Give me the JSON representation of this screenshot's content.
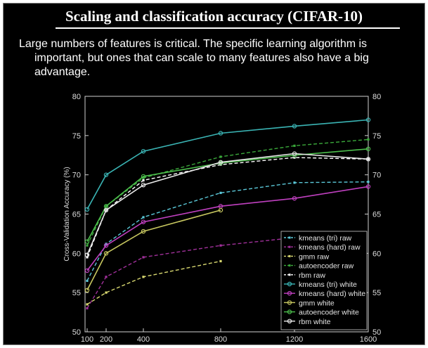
{
  "slide": {
    "title": "Scaling and classification accuracy (CIFAR-10)",
    "body_line1": "Large numbers of features is critical. The specific learning algorithm is",
    "body_line2": "important, but ones that can scale to many features also have a big",
    "body_line3": "advantage."
  },
  "chart_data": {
    "type": "line",
    "ylabel": "Cross-Validation Accuracy (%)",
    "xlabel": "",
    "x": [
      100,
      200,
      400,
      800,
      1200,
      1600
    ],
    "xticks": [
      "100",
      "200",
      "400",
      "800",
      "1200",
      "1600"
    ],
    "yticks": [
      "50",
      "55",
      "60",
      "65",
      "70",
      "75",
      "80"
    ],
    "ylim": [
      50,
      80
    ],
    "legend_position": "bottom-right",
    "series": [
      {
        "name": "kmeans (tri) raw",
        "color": "#5bc8d8",
        "dash": true,
        "marker": "square",
        "x": [
          100,
          200,
          400,
          800,
          1200,
          1600
        ],
        "values": [
          56.5,
          61.2,
          64.6,
          67.7,
          69.0,
          69.1
        ]
      },
      {
        "name": "kmeans (hard) raw",
        "color": "#a0309a",
        "dash": true,
        "marker": "square",
        "x": [
          100,
          200,
          400,
          800,
          1200
        ],
        "values": [
          53.0,
          57.0,
          59.5,
          61.0,
          62.0
        ]
      },
      {
        "name": "gmm raw",
        "color": "#d8d870",
        "dash": true,
        "marker": "square",
        "x": [
          100,
          200,
          400,
          800
        ],
        "values": [
          53.5,
          55.0,
          57.0,
          59.0
        ]
      },
      {
        "name": "autoencoder raw",
        "color": "#3aa83a",
        "dash": true,
        "marker": "square",
        "x": [
          100,
          200,
          400,
          800,
          1200,
          1600
        ],
        "values": [
          61.0,
          66.0,
          69.6,
          72.3,
          73.7,
          74.5
        ]
      },
      {
        "name": "rbm raw",
        "color": "#ffffff",
        "dash": true,
        "marker": "square",
        "x": [
          100,
          200,
          400,
          800,
          1200,
          1600
        ],
        "values": [
          59.5,
          65.5,
          69.3,
          71.3,
          72.2,
          72.0
        ]
      },
      {
        "name": "kmeans (tri) white",
        "color": "#3ab4b4",
        "dash": false,
        "marker": "circle",
        "x": [
          100,
          200,
          400,
          800,
          1200,
          1600
        ],
        "values": [
          65.6,
          70.0,
          73.0,
          75.3,
          76.2,
          77.0
        ]
      },
      {
        "name": "kmeans (hard) white",
        "color": "#c040c0",
        "dash": false,
        "marker": "circle",
        "x": [
          100,
          200,
          400,
          800,
          1200,
          1600
        ],
        "values": [
          57.8,
          61.0,
          64.0,
          66.0,
          67.0,
          68.5
        ]
      },
      {
        "name": "gmm white",
        "color": "#c8c860",
        "dash": false,
        "marker": "circle",
        "x": [
          100,
          200,
          400,
          800
        ],
        "values": [
          55.3,
          60.0,
          62.8,
          65.5
        ]
      },
      {
        "name": "autoencoder white",
        "color": "#4cbc4c",
        "dash": false,
        "marker": "circle",
        "x": [
          100,
          200,
          400,
          800,
          1200,
          1600
        ],
        "values": [
          61.5,
          66.0,
          69.8,
          71.5,
          72.5,
          73.3
        ]
      },
      {
        "name": "rbm white",
        "color": "#e8e8e8",
        "dash": false,
        "marker": "circle",
        "x": [
          100,
          200,
          400,
          800,
          1200,
          1600
        ],
        "values": [
          59.8,
          65.5,
          68.7,
          71.6,
          72.7,
          72.0
        ]
      }
    ]
  }
}
